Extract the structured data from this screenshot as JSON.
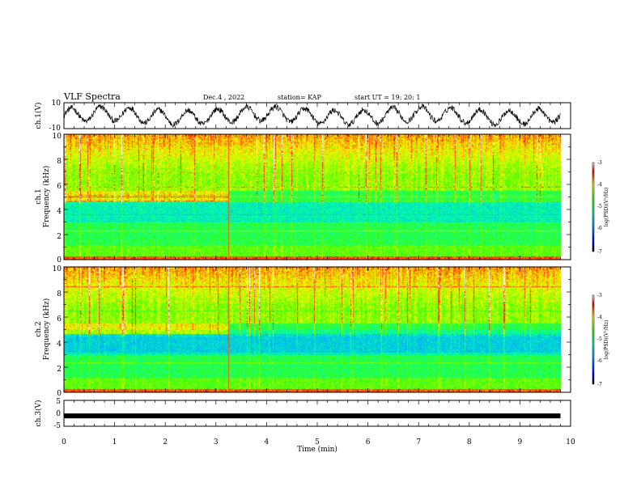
{
  "header": {
    "title": "VLF Spectra",
    "date": "Dec.4 , 2022",
    "station": "station= KAP",
    "start": "start UT = 19: 20: 1"
  },
  "chart_data": [
    {
      "type": "line",
      "name": "ch1-waveform",
      "ylabel": "ch.1(V)",
      "ylim": [
        -10,
        10
      ],
      "y_ticks": [
        "10",
        "-10"
      ],
      "xlim": [
        0,
        10
      ],
      "x_end": 9.8,
      "series_color": "#000000"
    },
    {
      "type": "heatmap",
      "name": "ch1-spectrogram",
      "ylabel_top": "ch.1",
      "ylabel": "Frequency (kHz)",
      "ylim": [
        0,
        10
      ],
      "y_ticks": [
        "0",
        "2",
        "4",
        "6",
        "8",
        "10"
      ],
      "xlim": [
        0,
        10
      ],
      "x_end": 9.8,
      "colorbar": {
        "label": "log(PSD)(V²/Hz)",
        "range": [
          -7,
          -3
        ],
        "ticks": [
          "-3",
          "-4",
          "-5",
          "-6",
          "-7"
        ]
      }
    },
    {
      "type": "heatmap",
      "name": "ch2-spectrogram",
      "ylabel_top": "ch.2",
      "ylabel": "Frequency (kHz)",
      "ylim": [
        0,
        10
      ],
      "y_ticks": [
        "0",
        "2",
        "4",
        "6",
        "8",
        "10"
      ],
      "xlim": [
        0,
        10
      ],
      "x_end": 9.8,
      "colorbar": {
        "label": "log(PSD)(V²/Hz)",
        "range": [
          -7,
          -3
        ],
        "ticks": [
          "-3",
          "-4",
          "-5",
          "-6",
          "-7"
        ]
      }
    },
    {
      "type": "line",
      "name": "ch3-waveform",
      "ylabel": "ch.3(V)",
      "ylim": [
        -5,
        5
      ],
      "y_ticks": [
        "5",
        "0",
        "-5"
      ],
      "xlim": [
        0,
        10
      ],
      "x_end": 9.8,
      "level": -1,
      "series_color": "#000000"
    }
  ],
  "x_axis": {
    "label": "Time (min)",
    "ticks": [
      "0",
      "1",
      "2",
      "3",
      "4",
      "5",
      "6",
      "7",
      "8",
      "9",
      "10"
    ]
  }
}
